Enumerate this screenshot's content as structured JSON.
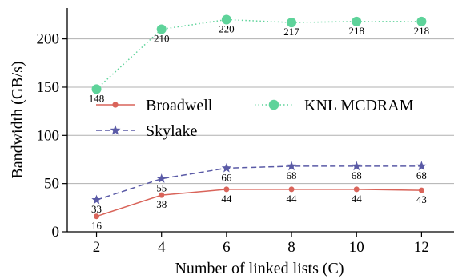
{
  "chart_data": {
    "type": "line",
    "xlabel": "Number of linked lists (C)",
    "ylabel": "Bandwidth (GB/s)",
    "x": [
      2,
      4,
      6,
      8,
      10,
      12
    ],
    "xlim": [
      1.1,
      13.0
    ],
    "ylim": [
      0,
      232
    ],
    "xticks": [
      2,
      4,
      6,
      8,
      10,
      12
    ],
    "yticks": [
      0,
      50,
      100,
      150,
      200
    ],
    "grid": "horizontal",
    "legend_position": "center-left",
    "series": [
      {
        "name": "Broadwell",
        "values": [
          16,
          38,
          44,
          44,
          44,
          43
        ],
        "color": "#d9645a",
        "line_style": "solid",
        "marker": "circle",
        "label_position": "below"
      },
      {
        "name": "Skylake",
        "values": [
          33,
          55,
          66,
          68,
          68,
          68
        ],
        "color": "#5a5aa6",
        "line_style": "dashed",
        "marker": "star",
        "label_position": "below"
      },
      {
        "name": "KNL MCDRAM",
        "values": [
          148,
          210,
          220,
          217,
          218,
          218
        ],
        "color": "#5ed39a",
        "line_style": "dotted",
        "marker": "circle-large",
        "label_position": "below"
      }
    ]
  }
}
